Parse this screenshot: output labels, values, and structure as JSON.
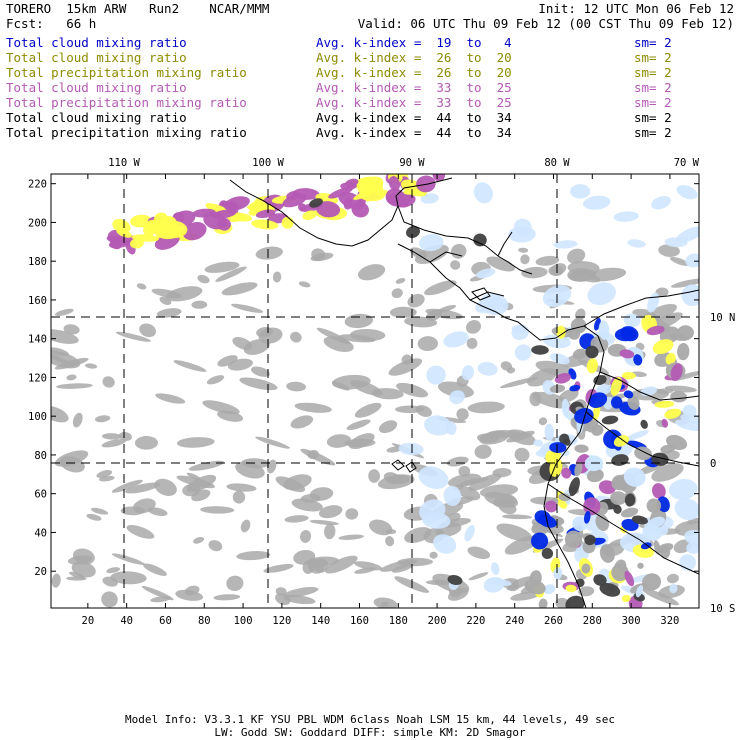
{
  "header": {
    "model": "TORERO  15km ARW   Run2    NCAR/MMM",
    "init": "Init: 12 UTC Mon 06 Feb 12",
    "fcst": "Fcst:   66 h",
    "valid": "Valid: 06 UTC Thu 09 Feb 12 (00 CST Thu 09 Feb 12)"
  },
  "legend": [
    {
      "name": "Total cloud mixing ratio",
      "kindex": "Avg. k-index =  19  to   4",
      "sm": "sm= 2",
      "color": "#0000c8"
    },
    {
      "name": "Total cloud mixing ratio",
      "kindex": "Avg. k-index =  26  to  20",
      "sm": "sm= 2",
      "color": "#8c8c00"
    },
    {
      "name": "Total precipitation mixing ratio",
      "kindex": "Avg. k-index =  26  to  20",
      "sm": "sm= 2",
      "color": "#8c8c00"
    },
    {
      "name": "Total cloud mixing ratio",
      "kindex": "Avg. k-index =  33  to  25",
      "sm": "sm= 2",
      "color": "#b45ab4"
    },
    {
      "name": "Total precipitation mixing ratio",
      "kindex": "Avg. k-index =  33  to  25",
      "sm": "sm= 2",
      "color": "#b45ab4"
    },
    {
      "name": "Total cloud mixing ratio",
      "kindex": "Avg. k-index =  44  to  34",
      "sm": "sm= 2",
      "color": "#000000"
    },
    {
      "name": "Total precipitation mixing ratio",
      "kindex": "Avg. k-index =  44  to  34",
      "sm": "sm= 2",
      "color": "#000000"
    }
  ],
  "map": {
    "x_ticks": [
      "20",
      "40",
      "60",
      "80",
      "100",
      "120",
      "140",
      "160",
      "180",
      "200",
      "220",
      "240",
      "260",
      "280",
      "300",
      "320"
    ],
    "y_ticks": [
      "20",
      "40",
      "60",
      "80",
      "100",
      "120",
      "140",
      "160",
      "180",
      "200",
      "220"
    ],
    "lon_labels": [
      "110 W",
      "100 W",
      "90 W",
      "80 W",
      "70 W"
    ],
    "lat_labels": [
      "10 N",
      "0",
      "10 S"
    ],
    "colors": {
      "gray": "#a9a9a9",
      "dark": "#404040",
      "blue": "#0028e6",
      "lightblue": "#cfe6ff",
      "yellow": "#ffff4d",
      "purple": "#b45ab4"
    }
  },
  "footer": {
    "line1": "Model Info: V3.3.1    KF      YSU PBL  WDM 6class  Noah LSM  15 km,    44 levels,    49 sec",
    "line2": "LW: Godd SW: Goddard DIFF: simple KM: 2D Smagor"
  }
}
